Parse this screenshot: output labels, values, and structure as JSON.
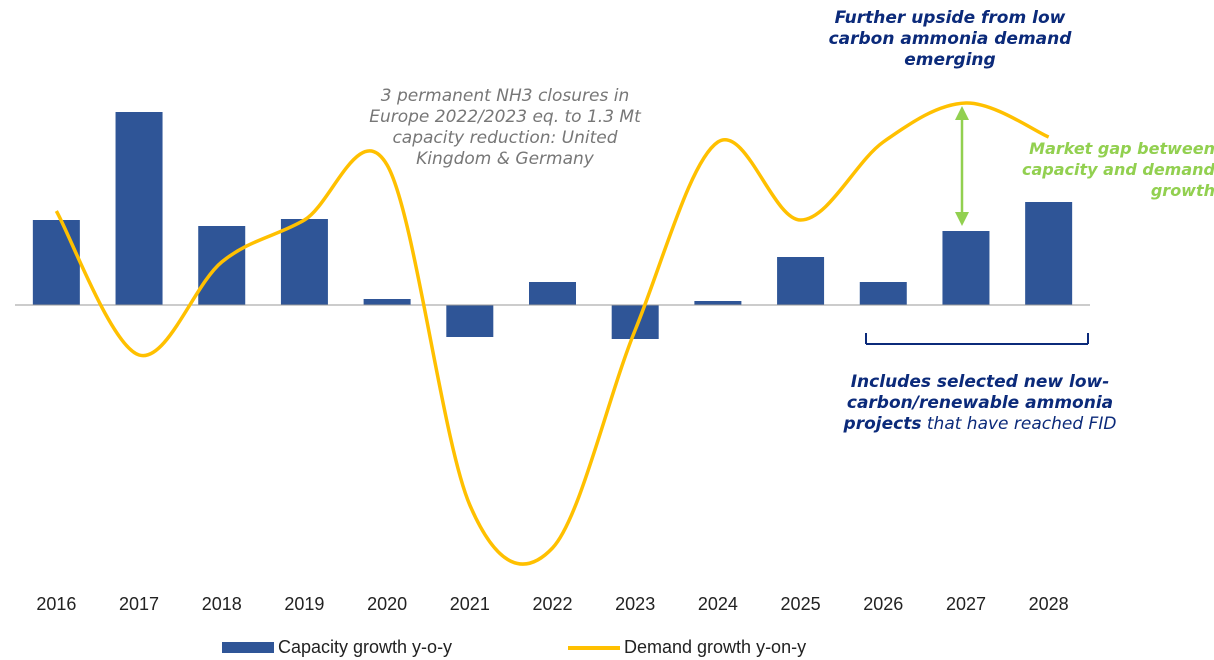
{
  "chart_data": {
    "type": "bar_line",
    "categories": [
      "2016",
      "2017",
      "2018",
      "2019",
      "2020",
      "2021",
      "2022",
      "2023",
      "2024",
      "2025",
      "2026",
      "2027",
      "2028"
    ],
    "series": [
      {
        "name": "Capacity growth y-o-y",
        "type": "bar",
        "color": "#2f5597",
        "values": [
          85,
          193,
          79,
          86,
          6,
          -32,
          23,
          -34,
          4,
          48,
          23,
          74,
          103
        ]
      },
      {
        "name": "Demand growth y-on-y",
        "type": "line",
        "color": "#ffc000",
        "values": [
          94,
          -50,
          43,
          85,
          140,
          -200,
          -243,
          -25,
          163,
          85,
          163,
          202,
          168
        ]
      }
    ]
  },
  "annotations": {
    "closures": "3 permanent NH3 closures in Europe 2022/2023 eq. to 1.3 Mt capacity reduction: United Kingdom & Germany",
    "upside": "Further upside from low carbon ammonia demand emerging",
    "gap": "Market gap between capacity and demand growth",
    "projects_bold": "Includes selected new low-carbon/renewable ammonia projects",
    "projects_rest": "that have reached FID"
  }
}
